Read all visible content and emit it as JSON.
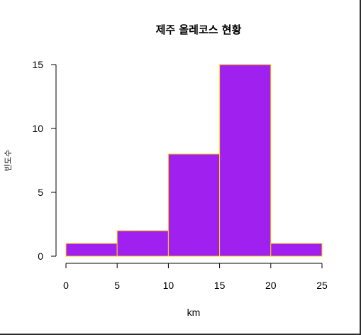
{
  "chart_data": {
    "type": "bar",
    "title": "제주 올레코스 현황",
    "xlabel": "km",
    "ylabel": "빈도수",
    "bins": [
      [
        0,
        5
      ],
      [
        5,
        10
      ],
      [
        10,
        15
      ],
      [
        15,
        20
      ],
      [
        20,
        25
      ]
    ],
    "values": [
      1,
      2,
      8,
      15,
      1
    ],
    "x_ticks": [
      "0",
      "5",
      "10",
      "15",
      "20",
      "25"
    ],
    "y_ticks": [
      "0",
      "5",
      "10",
      "15"
    ],
    "xlim": [
      0,
      25
    ],
    "ylim": [
      0,
      15
    ],
    "grid": false,
    "bar_fill": "#a020f0",
    "bar_border": "#ffd700"
  }
}
